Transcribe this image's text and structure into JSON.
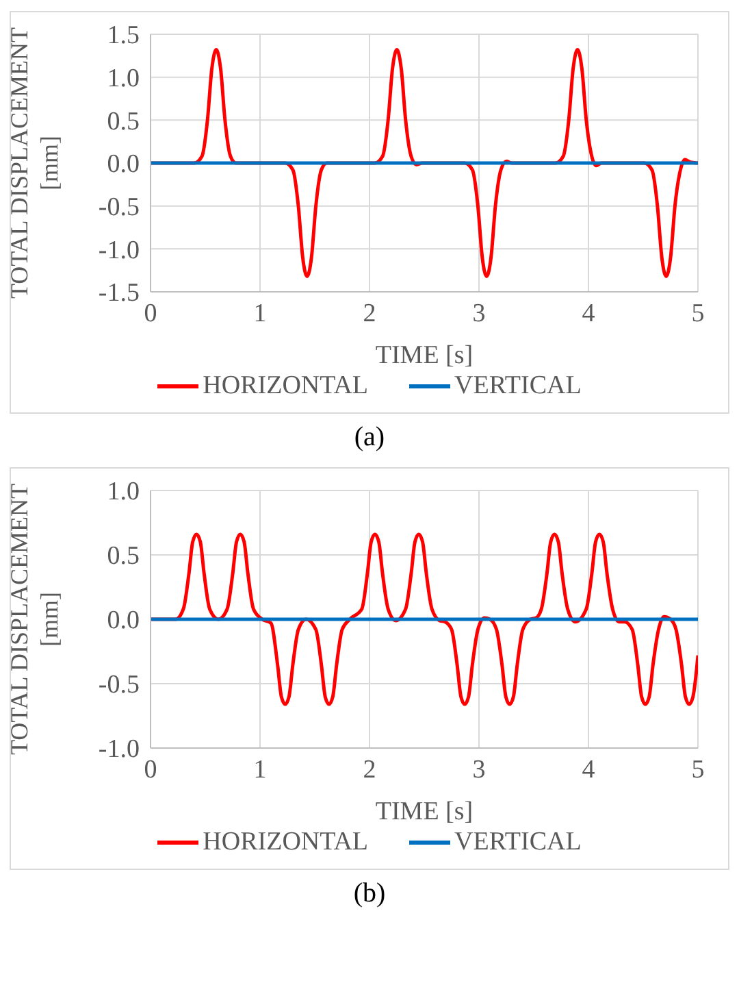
{
  "chart_data": [
    {
      "type": "line",
      "xlabel": "TIME [s]",
      "ylabel": "TOTAL DISPLACEMENT [mm]",
      "xlim": [
        0,
        5
      ],
      "xticks": [
        0,
        1,
        2,
        3,
        4,
        5
      ],
      "ylim": [
        -1.5,
        1.5
      ],
      "yticks": [
        {
          "value": -1.5,
          "label": "-1.5"
        },
        {
          "value": -1.0,
          "label": "-1.0"
        },
        {
          "value": -0.5,
          "label": "-0.5"
        },
        {
          "value": 0,
          "label": "0.0"
        },
        {
          "value": 0.5,
          "label": "0.5"
        },
        {
          "value": 1.0,
          "label": "1.0"
        },
        {
          "value": 1.5,
          "label": "1.5"
        }
      ],
      "grid": true,
      "legend": "bottom",
      "annotations": [
        "(a)"
      ],
      "series": [
        {
          "name": "HORIZONTAL",
          "color": "#ff0000",
          "x": [
            0,
            0.4,
            0.47,
            0.52,
            0.56,
            0.6,
            0.64,
            0.68,
            0.73,
            0.78,
            1.23,
            1.3,
            1.35,
            1.39,
            1.43,
            1.47,
            1.51,
            1.56,
            1.61,
            2.05,
            2.12,
            2.17,
            2.21,
            2.25,
            2.29,
            2.33,
            2.38,
            2.43,
            2.48,
            2.87,
            2.94,
            2.99,
            3.03,
            3.07,
            3.11,
            3.15,
            3.2,
            3.25,
            3.3,
            3.7,
            3.77,
            3.82,
            3.86,
            3.9,
            3.94,
            3.98,
            4.03,
            4.07,
            4.12,
            4.51,
            4.58,
            4.63,
            4.67,
            4.71,
            4.75,
            4.79,
            4.84,
            4.88,
            4.93,
            5
          ],
          "values": [
            0,
            0,
            0.08,
            0.5,
            1.1,
            1.32,
            1.1,
            0.5,
            0.08,
            0,
            0,
            -0.08,
            -0.5,
            -1.1,
            -1.32,
            -1.1,
            -0.5,
            -0.08,
            0,
            0,
            0.08,
            0.5,
            1.1,
            1.32,
            1.1,
            0.5,
            0.08,
            -0.02,
            0,
            0,
            -0.08,
            -0.5,
            -1.1,
            -1.32,
            -1.1,
            -0.5,
            -0.08,
            0.02,
            0,
            0,
            0.08,
            0.5,
            1.1,
            1.32,
            1.1,
            0.5,
            0.08,
            -0.03,
            0,
            0,
            -0.08,
            -0.5,
            -1.1,
            -1.32,
            -1.1,
            -0.5,
            -0.08,
            0.04,
            0.01,
            0
          ]
        },
        {
          "name": "VERTICAL",
          "color": "#0070c0",
          "x": [
            0,
            5
          ],
          "values": [
            0,
            0
          ]
        }
      ]
    },
    {
      "type": "line",
      "xlabel": "TIME [s]",
      "ylabel": "TOTAL DISPLACEMENT [mm]",
      "xlim": [
        0,
        5
      ],
      "xticks": [
        0,
        1,
        2,
        3,
        4,
        5
      ],
      "ylim": [
        -1.0,
        1.0
      ],
      "yticks": [
        {
          "value": -1.0,
          "label": "-1.0"
        },
        {
          "value": -0.5,
          "label": "-0.5"
        },
        {
          "value": 0,
          "label": "0.0"
        },
        {
          "value": 0.5,
          "label": "0.5"
        },
        {
          "value": 1.0,
          "label": "1.0"
        }
      ],
      "grid": true,
      "legend": "bottom",
      "annotations": [
        "(b)"
      ],
      "series": [
        {
          "name": "HORIZONTAL",
          "color": "#ff0000",
          "x": [
            0,
            0.23,
            0.3,
            0.35,
            0.385,
            0.42,
            0.455,
            0.49,
            0.54,
            0.62,
            0.7,
            0.75,
            0.785,
            0.82,
            0.855,
            0.89,
            0.94,
            1.02,
            1.1,
            1.16,
            1.195,
            1.23,
            1.265,
            1.3,
            1.35,
            1.42,
            1.51,
            1.56,
            1.595,
            1.63,
            1.665,
            1.7,
            1.75,
            1.82,
            1.93,
            1.98,
            2.015,
            2.05,
            2.085,
            2.12,
            2.17,
            2.24,
            2.33,
            2.38,
            2.415,
            2.45,
            2.485,
            2.52,
            2.57,
            2.64,
            2.69,
            2.75,
            2.8,
            2.835,
            2.87,
            2.905,
            2.94,
            2.99,
            3.05,
            3.1,
            3.16,
            3.21,
            3.245,
            3.28,
            3.315,
            3.35,
            3.4,
            3.47,
            3.52,
            3.57,
            3.62,
            3.655,
            3.69,
            3.725,
            3.76,
            3.81,
            3.88,
            3.98,
            4.03,
            4.065,
            4.1,
            4.135,
            4.17,
            4.22,
            4.28,
            4.33,
            4.4,
            4.45,
            4.485,
            4.52,
            4.555,
            4.59,
            4.64,
            4.69,
            4.75,
            4.8,
            4.85,
            4.885,
            4.92,
            4.955,
            4.98,
            5
          ],
          "values": [
            0,
            0,
            0.08,
            0.35,
            0.6,
            0.66,
            0.6,
            0.35,
            0.08,
            0,
            0.08,
            0.35,
            0.6,
            0.66,
            0.6,
            0.35,
            0.08,
            0,
            -0.03,
            -0.35,
            -0.6,
            -0.66,
            -0.6,
            -0.35,
            -0.08,
            0,
            -0.08,
            -0.35,
            -0.6,
            -0.66,
            -0.6,
            -0.35,
            -0.08,
            0,
            0.08,
            0.35,
            0.6,
            0.66,
            0.6,
            0.35,
            0.08,
            -0.01,
            0.08,
            0.35,
            0.6,
            0.66,
            0.6,
            0.35,
            0.08,
            -0.01,
            -0.02,
            -0.08,
            -0.35,
            -0.6,
            -0.66,
            -0.6,
            -0.35,
            -0.08,
            0.01,
            0,
            -0.08,
            -0.35,
            -0.6,
            -0.66,
            -0.6,
            -0.35,
            -0.08,
            0,
            0.01,
            0.08,
            0.35,
            0.6,
            0.66,
            0.6,
            0.35,
            0.08,
            -0.02,
            0.08,
            0.35,
            0.6,
            0.66,
            0.6,
            0.35,
            0.08,
            -0.02,
            -0.02,
            -0.08,
            -0.35,
            -0.6,
            -0.66,
            -0.6,
            -0.35,
            -0.08,
            0.02,
            0,
            -0.08,
            -0.35,
            -0.6,
            -0.66,
            -0.6,
            -0.45,
            -0.28
          ]
        },
        {
          "name": "VERTICAL",
          "color": "#0070c0",
          "x": [
            0,
            5
          ],
          "values": [
            0,
            0
          ]
        }
      ]
    }
  ]
}
